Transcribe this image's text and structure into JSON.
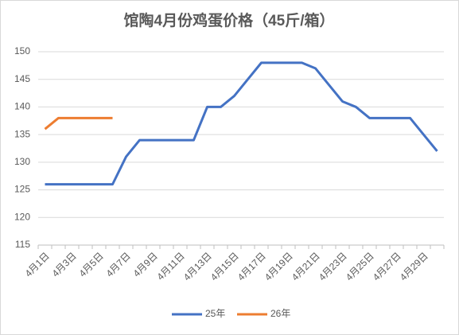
{
  "chart_data": {
    "type": "line",
    "title": "馆陶4月份鸡蛋价格（45斤/箱）",
    "categories": [
      "4月1日",
      null,
      "4月3日",
      null,
      "4月5日",
      null,
      "4月7日",
      null,
      "4月9日",
      null,
      "4月11日",
      null,
      "4月13日",
      null,
      "4月15日",
      null,
      "4月17日",
      null,
      "4月19日",
      null,
      "4月21日",
      null,
      "4月23日",
      null,
      "4月25日",
      null,
      "4月27日",
      null,
      "4月29日",
      null
    ],
    "series": [
      {
        "name": "25年",
        "color": "#4472c4",
        "values": [
          126,
          126,
          126,
          126,
          126,
          126,
          131,
          134,
          134,
          134,
          134,
          134,
          140,
          140,
          142,
          145,
          148,
          148,
          148,
          148,
          147,
          144,
          141,
          140,
          138,
          138,
          138,
          138,
          135,
          132
        ]
      },
      {
        "name": "26年",
        "color": "#ed7d31",
        "values": [
          136,
          138,
          138,
          138,
          138,
          138,
          null,
          null,
          null,
          null,
          null,
          null,
          null,
          null,
          null,
          null,
          null,
          null,
          null,
          null,
          null,
          null,
          null,
          null,
          null,
          null,
          null,
          null,
          null,
          null
        ]
      }
    ],
    "ylim": [
      115,
      150
    ],
    "yticks": [
      115,
      120,
      125,
      130,
      135,
      140,
      145,
      150
    ],
    "grid": true,
    "legend": "bottom"
  }
}
